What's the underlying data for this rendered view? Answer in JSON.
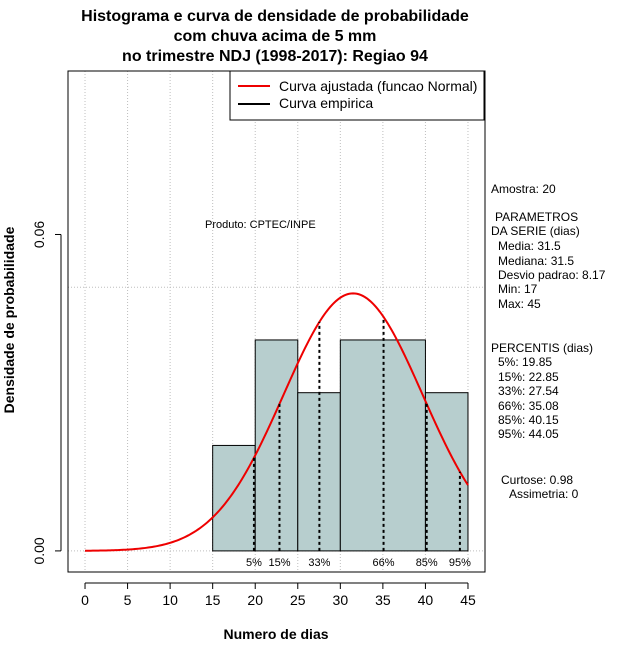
{
  "chart_data": {
    "type": "histogram",
    "title": [
      "Histograma e curva de densidade de probabilidade",
      "com chuva acima de 5 mm",
      "no trimestre NDJ (1998-2017): Regiao 94"
    ],
    "xlabel": "Numero de dias",
    "ylabel": "Densidade de probabilidade",
    "xlim": [
      -2,
      47
    ],
    "ylim": [
      -0.004,
      0.091
    ],
    "x_ticks": [
      0,
      5,
      10,
      15,
      20,
      25,
      30,
      35,
      40,
      45
    ],
    "y_ticks": [
      0.0,
      0.06
    ],
    "y_tick_labels": [
      "0.00",
      "0.06"
    ],
    "x_grid": [
      0,
      5,
      10,
      15,
      20,
      25,
      30,
      35,
      40,
      45
    ],
    "y_grid": [
      0,
      0.05
    ],
    "bars": [
      {
        "x0": 15,
        "x1": 20,
        "density": 0.02
      },
      {
        "x0": 20,
        "x1": 25,
        "density": 0.04
      },
      {
        "x0": 25,
        "x1": 30,
        "density": 0.03
      },
      {
        "x0": 30,
        "x1": 40,
        "density": 0.04
      },
      {
        "x0": 40,
        "x1": 45,
        "density": 0.03
      }
    ],
    "normal_fit": {
      "mean": 31.5,
      "sd": 8.17,
      "x_range": [
        0,
        45
      ]
    },
    "percentiles": [
      {
        "label": "5%",
        "x": 19.85
      },
      {
        "label": "15%",
        "x": 22.85
      },
      {
        "label": "33%",
        "x": 27.54
      },
      {
        "label": "66%",
        "x": 35.08
      },
      {
        "label": "85%",
        "x": 40.15
      },
      {
        "label": "95%",
        "x": 44.05
      }
    ],
    "annotation": "Produto: CPTEC/INPE",
    "legend": {
      "position": "top-right",
      "entries": [
        {
          "label": "Curva ajustada (funcao Normal)",
          "color": "#ee0000"
        },
        {
          "label": "Curva empirica",
          "color": "#000000"
        }
      ]
    },
    "colors": {
      "bar_fill": "#b7cece",
      "curve": "#ee0000",
      "grid": "#bebebe"
    },
    "stats": {
      "amostra": "Amostra: 20",
      "parametros_title": [
        "PARAMETROS",
        "DA SERIE (dias)"
      ],
      "parametros": [
        "Media: 31.5",
        "Mediana: 31.5",
        "Desvio padrao: 8.17",
        "Min: 17",
        "Max: 45"
      ],
      "percentis_title": "PERCENTIS (dias)",
      "percentis": [
        "5%: 19.85",
        "15%: 22.85",
        "33%: 27.54",
        "66%: 35.08",
        "85%: 40.15",
        "95%: 44.05"
      ],
      "curtose": "Curtose: 0.98",
      "assimetria": "Assimetria: 0"
    }
  }
}
